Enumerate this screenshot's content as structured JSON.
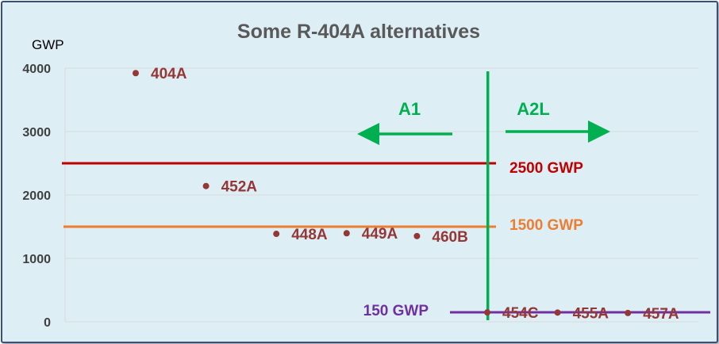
{
  "chart_data": {
    "type": "scatter",
    "title": "Some R-404A alternatives",
    "ylabel": "GWP",
    "ylim": [
      0,
      4000
    ],
    "yticks": [
      0,
      1000,
      2000,
      3000,
      4000
    ],
    "grid": true,
    "points": [
      {
        "label": "404A",
        "x": 1,
        "y": 3922
      },
      {
        "label": "452A",
        "x": 2,
        "y": 2141
      },
      {
        "label": "448A",
        "x": 3,
        "y": 1387
      },
      {
        "label": "449A",
        "x": 4,
        "y": 1397
      },
      {
        "label": "460B",
        "x": 5,
        "y": 1352
      },
      {
        "label": "454C",
        "x": 6,
        "y": 148
      },
      {
        "label": "455A",
        "x": 7,
        "y": 146
      },
      {
        "label": "457A",
        "x": 8,
        "y": 139
      }
    ],
    "reference_lines": [
      {
        "label": "2500 GWP",
        "y": 2500,
        "color": "#c00000"
      },
      {
        "label": "1500 GWP",
        "y": 1500,
        "color": "#ed7d31"
      },
      {
        "label": "150 GWP",
        "y": 150,
        "color": "#7030a0"
      }
    ],
    "divider": {
      "x": 5.5,
      "color": "#00b050"
    },
    "classes": [
      {
        "label": "A1",
        "direction": "left"
      },
      {
        "label": "A2L",
        "direction": "right"
      }
    ],
    "colors": {
      "point": "#953735",
      "grid": "#d9d9d9",
      "background": "#ddeef5",
      "frame": "#3a4f7a",
      "class": "#00b050"
    }
  }
}
